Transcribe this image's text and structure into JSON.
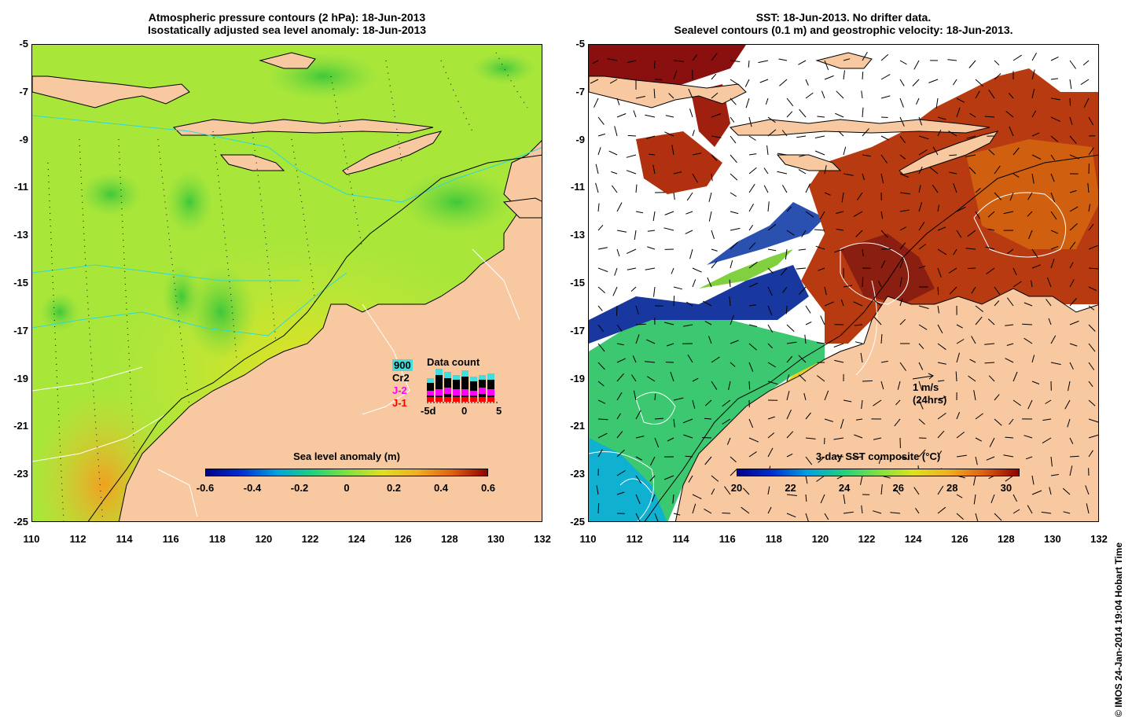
{
  "left": {
    "title_line1": "Atmospheric pressure contours (2 hPa): 18-Jun-2013",
    "title_line2": "Isostatically adjusted sea level anomaly: 18-Jun-2013",
    "colorbar_title": "Sea level anomaly (m)",
    "colorbar_ticks": [
      "-0.6",
      "-0.4",
      "-0.2",
      "0",
      "0.2",
      "0.4",
      "0.6"
    ],
    "colorbar_range": [
      -0.6,
      0.6
    ],
    "legend": {
      "rows": [
        {
          "label": "900",
          "color": "#000000",
          "bg": "#44dddd"
        },
        {
          "label": "Cr2",
          "color": "#000000",
          "bg": ""
        },
        {
          "label": "J-2",
          "color": "#ff00ff",
          "bg": ""
        },
        {
          "label": "J-1",
          "color": "#ff0000",
          "bg": ""
        }
      ],
      "title": "Data count",
      "axis": [
        "-5d",
        "0",
        "5"
      ]
    }
  },
  "right": {
    "title_line1": "SST: 18-Jun-2013. No drifter data.",
    "title_line2": "Sealevel contours (0.1 m) and geostrophic velocity: 18-Jun-2013.",
    "colorbar_title": "3-day SST composite (°C)",
    "colorbar_ticks": [
      "20",
      "22",
      "24",
      "26",
      "28",
      "30"
    ],
    "colorbar_range": [
      20,
      30.5
    ],
    "velocity_label": "1 m/s",
    "velocity_sub": "(24hrs)"
  },
  "axes": {
    "y_ticks": [
      "-5",
      "-7",
      "-9",
      "-11",
      "-13",
      "-15",
      "-17",
      "-19",
      "-21",
      "-23",
      "-25"
    ],
    "x_ticks": [
      "110",
      "112",
      "114",
      "116",
      "118",
      "120",
      "122",
      "124",
      "126",
      "128",
      "130",
      "132"
    ],
    "lat_range": [
      -25,
      -5
    ],
    "lon_range": [
      110,
      132
    ]
  },
  "credit": "© IMOS 24-Jan-2014 19:04 Hobart Time",
  "colors": {
    "land": "#f8c8a0",
    "ocean_green": "#9be84a",
    "sst_red": "#b03010",
    "sst_orange": "#d06010"
  }
}
